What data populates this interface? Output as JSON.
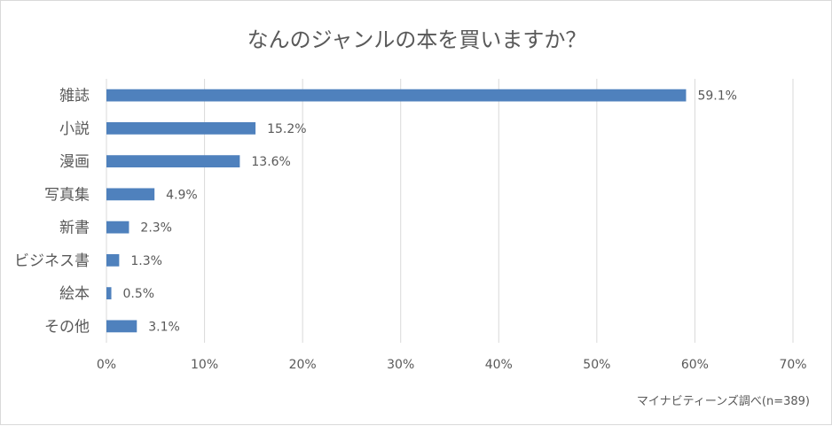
{
  "chart_data": {
    "type": "bar",
    "orientation": "horizontal",
    "title": "なんのジャンルの本を買いますか？",
    "categories": [
      "雑誌",
      "小説",
      "漫画",
      "写真集",
      "新書",
      "ビジネス書",
      "絵本",
      "その他"
    ],
    "values": [
      59.1,
      15.2,
      13.6,
      4.9,
      2.3,
      1.3,
      0.5,
      3.1
    ],
    "data_labels": [
      "59.1%",
      "15.2%",
      "13.6%",
      "4.9%",
      "2.3%",
      "1.3%",
      "0.5%",
      "3.1%"
    ],
    "xlim": [
      0,
      70
    ],
    "x_ticks": [
      0,
      10,
      20,
      30,
      40,
      50,
      60,
      70
    ],
    "x_tick_labels": [
      "0%",
      "10%",
      "20%",
      "30%",
      "40%",
      "50%",
      "60%",
      "70%"
    ],
    "grid": true,
    "legend": "none",
    "bar_color": "#4f81bd",
    "source_note": "マイナビティーンズ調べ(n=389)"
  }
}
